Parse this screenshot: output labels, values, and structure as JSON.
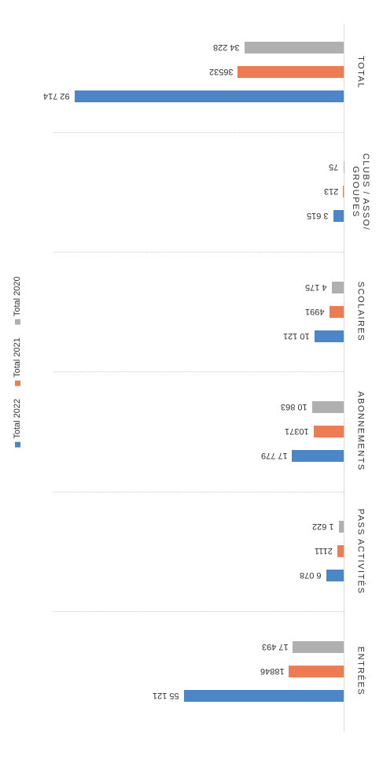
{
  "chart_data": {
    "type": "bar",
    "orientation": "horizontal",
    "categories": [
      "ENTRÉES",
      "PASS ACTIVITÉS",
      "ABONNEMENTS",
      "SCOLAIRES",
      "CLUBS / ASSO/ GROUPES",
      "TOTAL"
    ],
    "series": [
      {
        "name": "Total 2022",
        "color": "#4a86c8",
        "values": [
          55121,
          6078,
          17779,
          10121,
          3615,
          92714
        ],
        "value_labels": [
          "55 121",
          "6 078",
          "17 779",
          "10 121",
          "3 615",
          "92 714"
        ]
      },
      {
        "name": "Total 2021",
        "color": "#ee7b52",
        "values": [
          18846,
          2111,
          10371,
          4991,
          213,
          36532
        ],
        "value_labels": [
          "18846",
          "2111",
          "10371",
          "4991",
          "213",
          "36532"
        ]
      },
      {
        "name": "Total 2020",
        "color": "#b0b0b0",
        "values": [
          17493,
          1622,
          10863,
          4175,
          75,
          34228
        ],
        "value_labels": [
          "17 493",
          "1 622",
          "10 863",
          "4 175",
          "75",
          "34 228"
        ]
      }
    ],
    "ylim": [
      0,
      100000
    ]
  }
}
